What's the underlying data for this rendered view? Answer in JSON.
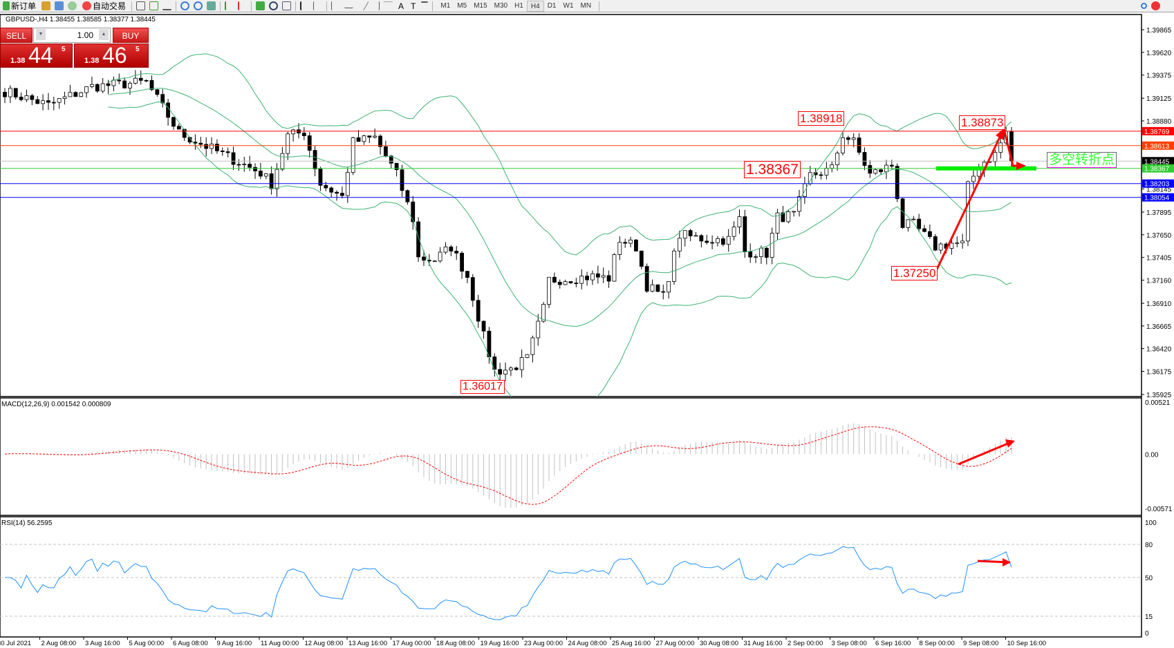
{
  "toolbar": {
    "new_order": "新订单",
    "auto_trading": "自动交易",
    "timeframes": [
      "M1",
      "M5",
      "M15",
      "M30",
      "H1",
      "H4",
      "D1",
      "W1",
      "MN"
    ],
    "active_timeframe": "H4"
  },
  "chart": {
    "header": "GBPUSD-,H4  1.38455 1.38585 1.38377 1.38445",
    "trade_panel": {
      "sell": "SELL",
      "buy": "BUY",
      "lot": "1.00",
      "sell_small": "1.38",
      "sell_big": "44",
      "sell_sup": "5",
      "buy_small": "1.38",
      "buy_big": "46",
      "buy_sup": "5"
    },
    "price_ticks": [
      "1.39865",
      "1.39620",
      "1.39375",
      "1.39125",
      "1.38880",
      "1.38145",
      "1.37895",
      "1.37650",
      "1.37405",
      "1.37160",
      "1.36910",
      "1.36665",
      "1.36420",
      "1.36175",
      "1.35925"
    ],
    "levels": [
      {
        "price": "1.38769",
        "color": "#ff0000"
      },
      {
        "price": "1.38613",
        "color": "#ff4000"
      },
      {
        "price": "1.38445",
        "color": "#000000",
        "line": "#c0c0c0"
      },
      {
        "price": "1.38367",
        "color": "#32cd32"
      },
      {
        "price": "1.38203",
        "color": "#0000ff"
      },
      {
        "price": "1.38054",
        "color": "#0000ff"
      }
    ],
    "annotations": {
      "high1": "1.38918",
      "mid": "1.38367",
      "low1": "1.36017",
      "low2": "1.37250",
      "high2": "1.38873",
      "turning_point": "多空转折点"
    },
    "time_labels": [
      "30 Jul 2021",
      "2 Aug 08:00",
      "3 Aug 16:00",
      "5 Aug 00:00",
      "6 Aug 08:00",
      "9 Aug 16:00",
      "11 Aug 00:00",
      "12 Aug 08:00",
      "13 Aug 16:00",
      "17 Aug 00:00",
      "18 Aug 08:00",
      "19 Aug 16:00",
      "23 Aug 00:00",
      "24 Aug 08:00",
      "25 Aug 16:00",
      "27 Aug 00:00",
      "30 Aug 08:00",
      "31 Aug 16:00",
      "2 Sep 00:00",
      "3 Sep 08:00",
      "6 Sep 16:00",
      "8 Sep 00:00",
      "9 Sep 08:00",
      "10 Sep 16:00"
    ],
    "macd": {
      "header": "MACD(12,26,9) 0.001542 0.000809",
      "ticks": [
        "0.00521",
        "0.00",
        "-0.00571"
      ]
    },
    "rsi": {
      "header": "RSI(14) 56.2595",
      "ticks": [
        "100",
        "80",
        "50",
        "15",
        "0"
      ]
    }
  },
  "chart_data": {
    "type": "candlestick",
    "symbol": "GBPUSD",
    "timeframe": "H4",
    "ylim": [
      1.35925,
      1.39865
    ],
    "key_closes": [
      [
        0,
        1.392
      ],
      [
        8,
        1.3905
      ],
      [
        16,
        1.3925
      ],
      [
        26,
        1.393
      ],
      [
        32,
        1.3875
      ],
      [
        40,
        1.3852
      ],
      [
        47,
        1.3832
      ],
      [
        49,
        1.382
      ],
      [
        52,
        1.3872
      ],
      [
        55,
        1.3876
      ],
      [
        58,
        1.382
      ],
      [
        62,
        1.3806
      ],
      [
        64,
        1.3865
      ],
      [
        68,
        1.387
      ],
      [
        72,
        1.383
      ],
      [
        75,
        1.3782
      ],
      [
        76,
        1.374
      ],
      [
        79,
        1.3738
      ],
      [
        82,
        1.3752
      ],
      [
        85,
        1.372
      ],
      [
        88,
        1.3655
      ],
      [
        90,
        1.3618
      ],
      [
        93,
        1.362
      ],
      [
        96,
        1.3631
      ],
      [
        99,
        1.3685
      ],
      [
        100,
        1.3716
      ],
      [
        104,
        1.3718
      ],
      [
        108,
        1.372
      ],
      [
        111,
        1.3718
      ],
      [
        113,
        1.376
      ],
      [
        116,
        1.3752
      ],
      [
        118,
        1.371
      ],
      [
        121,
        1.3698
      ],
      [
        124,
        1.3765
      ],
      [
        129,
        1.376
      ],
      [
        133,
        1.376
      ],
      [
        135,
        1.3782
      ],
      [
        136,
        1.3747
      ],
      [
        140,
        1.3745
      ],
      [
        142,
        1.3784
      ],
      [
        145,
        1.3786
      ],
      [
        148,
        1.3829
      ],
      [
        152,
        1.3836
      ],
      [
        154,
        1.3873
      ],
      [
        156,
        1.3865
      ],
      [
        159,
        1.383
      ],
      [
        163,
        1.384
      ],
      [
        165,
        1.3775
      ],
      [
        167,
        1.3776
      ],
      [
        171,
        1.3752
      ],
      [
        174,
        1.3756
      ],
      [
        176,
        1.3755
      ],
      [
        177,
        1.3817
      ],
      [
        179,
        1.384
      ],
      [
        182,
        1.3852
      ],
      [
        184,
        1.3876
      ],
      [
        185,
        1.38445
      ]
    ]
  }
}
